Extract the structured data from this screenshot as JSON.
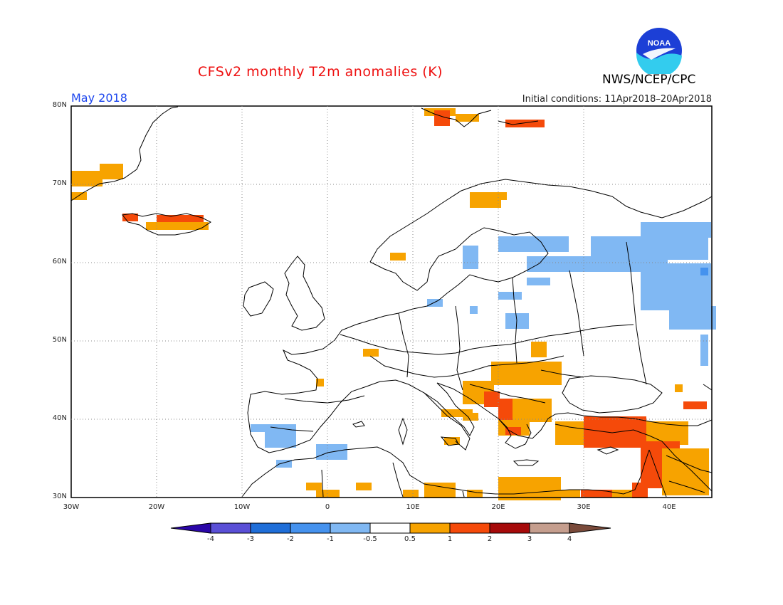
{
  "title": "CFSv2 monthly T2m anomalies (K)",
  "period": "May 2018",
  "initial_conditions": "Initial conditions: 11Apr2018–20Apr2018",
  "agency": "NWS/NCEP/CPC",
  "logo_text": "NOAA",
  "lat_labels": [
    "80N",
    "70N",
    "60N",
    "50N",
    "40N",
    "30N"
  ],
  "lon_labels": [
    "30W",
    "20W",
    "10W",
    "0",
    "10E",
    "20E",
    "30E",
    "40E"
  ],
  "colorbar": {
    "labels": [
      "-4",
      "-3",
      "-2",
      "-1",
      "-0.5",
      "0.5",
      "1",
      "2",
      "3",
      "4"
    ],
    "colors": [
      "#2a06a8",
      "#5a4fd6",
      "#1f6ed8",
      "#4592ee",
      "#80b8f3",
      "#ffffff",
      "#f7a300",
      "#f54a0a",
      "#a60a0a",
      "#c59e8e",
      "#7a4a3a"
    ]
  },
  "legend_colors": {
    "warm_05_1": "#f7a300",
    "warm_1_2": "#f54a0a",
    "cool_05_1": "#80b8f3",
    "cool_1_2": "#4592ee"
  }
}
